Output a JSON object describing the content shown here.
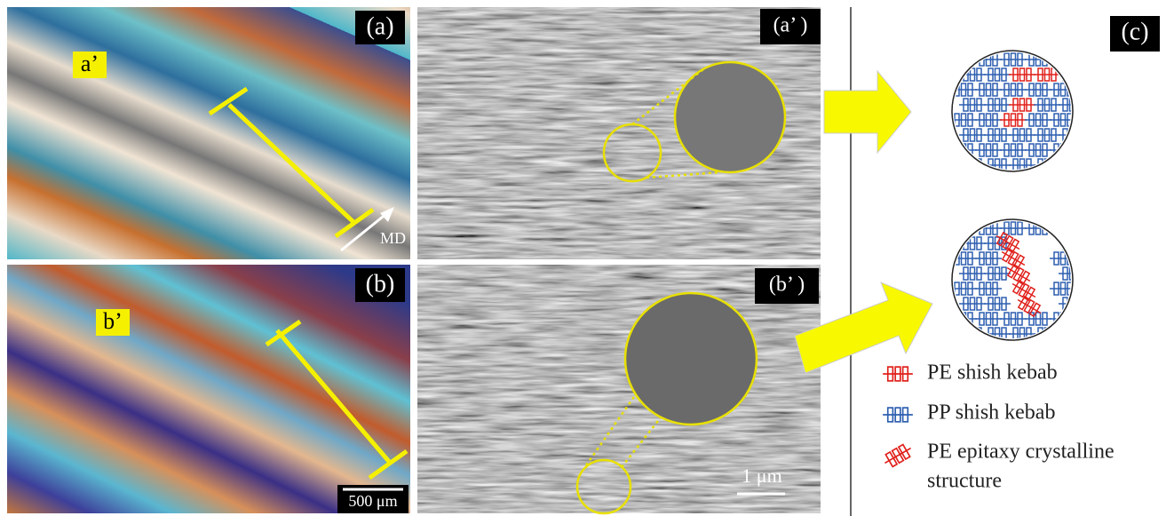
{
  "panels": {
    "a": {
      "label": "(a)",
      "sublabel": "a’",
      "direction": "MD"
    },
    "b": {
      "label": "(b)",
      "sublabel": "b’",
      "scale_bar": "500 μm"
    },
    "a_prime": {
      "label": "(a’ )"
    },
    "b_prime": {
      "label": "(b’ )",
      "scale_bar": "1 μm"
    },
    "c": {
      "label": "(c)",
      "legend": [
        {
          "lines": [
            "PE shish kebab"
          ]
        },
        {
          "lines": [
            "PP shish kebab"
          ]
        },
        {
          "lines": [
            "PE epitaxy crystalline",
            "structure"
          ]
        }
      ]
    }
  }
}
